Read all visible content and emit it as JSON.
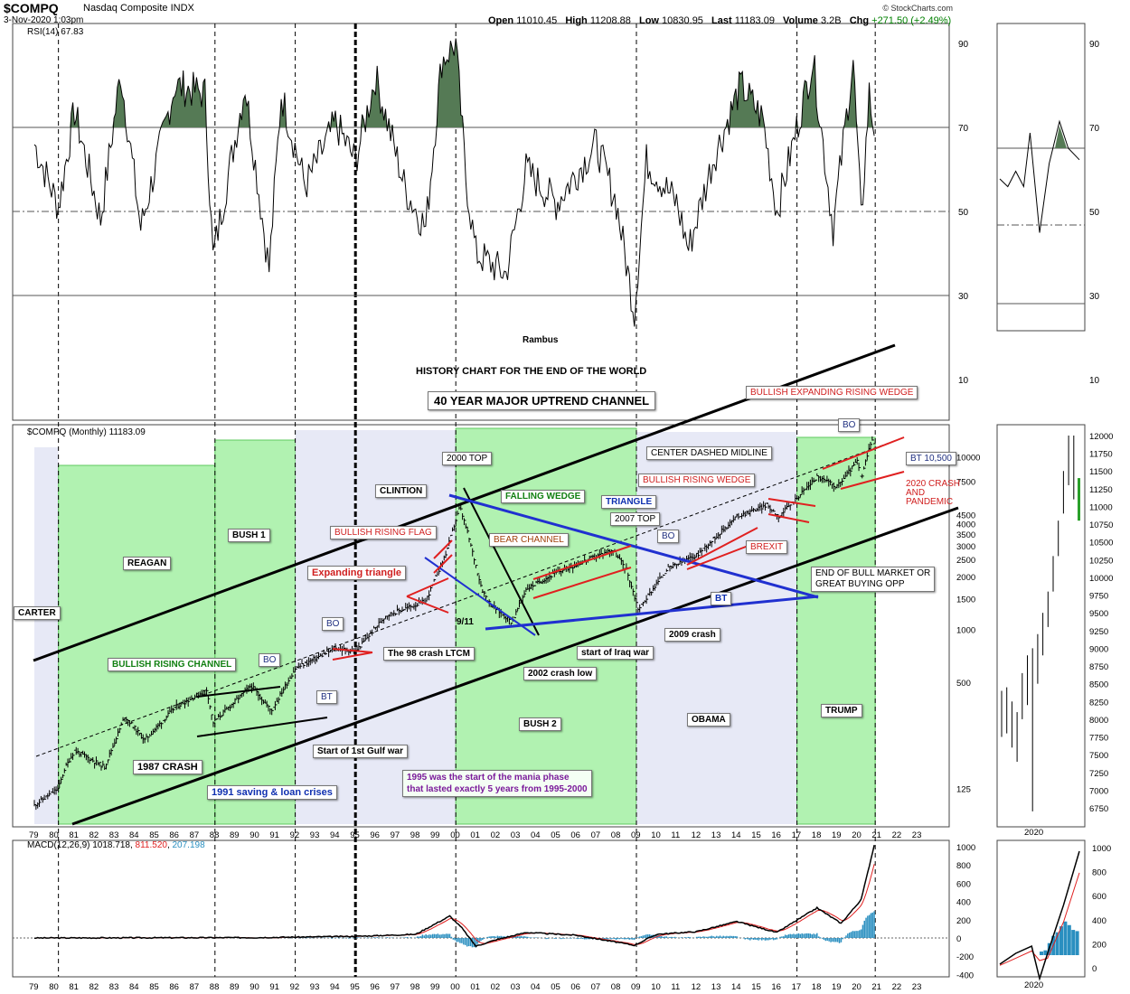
{
  "header": {
    "ticker": "$COMPQ",
    "company": "Nasdaq Composite  INDX",
    "datetime": "3-Nov-2020 1:03pm",
    "open_label": "Open",
    "open": "11010.45",
    "high_label": "High",
    "high": "11208.88",
    "low_label": "Low",
    "low": "10830.95",
    "last_label": "Last",
    "last": "11183.09",
    "volume_label": "Volume",
    "volume": "3.2B",
    "chg_label": "Chg",
    "chg": "+271.50 (+2.49%)",
    "credit": "© StockCharts.com"
  },
  "panels": {
    "rsi_label": "RSI(14) 67.83",
    "price_label": "$COMPQ (Monthly) 11183.09",
    "macd_label": "MACD(12,26,9)",
    "macd_v1": "1018.718",
    "macd_v2": "811.520",
    "macd_v3": "207.198",
    "colors": {
      "rsi_fill": "#557a55",
      "macd_line": "#000000",
      "signal_line": "#e02020",
      "histogram": "#2a8fc0",
      "era_green": "#a3f0a3",
      "era_grey": "#dde0f2"
    }
  },
  "text": {
    "rambus": "Rambus",
    "title": "HISTORY CHART FOR THE END OF THE WORLD",
    "channel": "40 YEAR MAJOR UPTREND CHANNEL"
  },
  "eras": [
    "CARTER",
    "REAGAN",
    "BUSH 1",
    "CLINTION",
    "BUSH 2",
    "OBAMA",
    "TRUMP"
  ],
  "annotations": {
    "bullish_expanding": "BULLISH EXPANDING RISING WEDGE",
    "bo_top": "BO",
    "bt_10500": "BT 10,500",
    "crash2020": [
      "2020 CRASH",
      "AND",
      "PANDEMIC"
    ],
    "center_midline": "CENTER DASHED MIDLINE",
    "top2000": "2000 TOP",
    "falling_wedge": "FALLING WEDGE",
    "triangle": "TRIANGLE",
    "top2007": "2007 TOP",
    "bullish_rising_wedge": "BULLISH RISING WEDGE",
    "bullish_rising_flag": "BULLISH RISING FLAG",
    "bear_channel": "BEAR CHANNEL",
    "bo_2009": "BO",
    "brexit": "BREXIT",
    "expanding_triangle": "Expanding triangle",
    "end_bull": [
      "END OF BULL MARKET OR",
      "GREAT BUYING OPP"
    ],
    "bt_2012": "BT",
    "nine_eleven": "9/11",
    "bo_1995": "BO",
    "crash98": "The 98 crash LTCM",
    "crash2009": "2009 crash",
    "iraq": "start of Iraq war",
    "crash2002": "2002 crash low",
    "bullish_rising_channel": "BULLISH RISING CHANNEL",
    "bo_1991": "BO",
    "bt_1993": "BT",
    "gulf_war": "Start of 1st Gulf war",
    "crash1987": "1987 CRASH",
    "savings_loan": "1991 saving & loan crises",
    "mania": [
      "1995 was the start of the mania phase",
      "that lasted exactly 5 years from 1995-2000"
    ]
  },
  "chart_data": [
    {
      "type": "line",
      "panel": "RSI(14)",
      "series": [
        {
          "name": "RSI(14)",
          "last": 67.83
        }
      ],
      "y_ticks": [
        90,
        70,
        50,
        30,
        10
      ],
      "reference_lines": [
        70,
        50,
        30
      ]
    },
    {
      "type": "candlestick",
      "panel": "$COMPQ (Monthly)",
      "scale": "log",
      "x_ticks": [
        "79",
        "80",
        "81",
        "82",
        "83",
        "84",
        "85",
        "86",
        "87",
        "88",
        "89",
        "90",
        "91",
        "92",
        "93",
        "94",
        "95",
        "96",
        "97",
        "98",
        "99",
        "00",
        "01",
        "02",
        "03",
        "04",
        "05",
        "06",
        "07",
        "08",
        "09",
        "10",
        "11",
        "12",
        "13",
        "14",
        "15",
        "16",
        "17",
        "18",
        "19",
        "20",
        "21",
        "22",
        "23"
      ],
      "y_ticks": [
        125,
        500,
        1000,
        1500,
        2000,
        2500,
        3000,
        3500,
        4000,
        4500,
        5000,
        5500,
        6000,
        6500,
        7000,
        7500,
        8000,
        8500,
        9000,
        9500,
        10000,
        11000,
        12000,
        12500
      ],
      "y_tick_labels": [
        "125",
        "500",
        "1000",
        "1500",
        "2000",
        "2500",
        "3000",
        "3500",
        "4000",
        "4500",
        "",
        "",
        "",
        "",
        "",
        "7500",
        "",
        "",
        "",
        "",
        "10000",
        "",
        "",
        ""
      ],
      "points": [
        {
          "x": 1979.0,
          "y": 100
        },
        {
          "x": 1980.2,
          "y": 125
        },
        {
          "x": 1980.5,
          "y": 160
        },
        {
          "x": 1981.0,
          "y": 205
        },
        {
          "x": 1982.5,
          "y": 165
        },
        {
          "x": 1983.5,
          "y": 320
        },
        {
          "x": 1984.5,
          "y": 235
        },
        {
          "x": 1986.0,
          "y": 360
        },
        {
          "x": 1987.6,
          "y": 455
        },
        {
          "x": 1987.9,
          "y": 295
        },
        {
          "x": 1989.8,
          "y": 480
        },
        {
          "x": 1990.8,
          "y": 345
        },
        {
          "x": 1992.0,
          "y": 600
        },
        {
          "x": 1994.0,
          "y": 780
        },
        {
          "x": 1995.0,
          "y": 750
        },
        {
          "x": 1996.5,
          "y": 1200
        },
        {
          "x": 1998.5,
          "y": 1450
        },
        {
          "x": 1999.5,
          "y": 2700
        },
        {
          "x": 2000.2,
          "y": 5000
        },
        {
          "x": 2000.6,
          "y": 3500
        },
        {
          "x": 2001.3,
          "y": 1700
        },
        {
          "x": 2001.7,
          "y": 1400
        },
        {
          "x": 2002.8,
          "y": 1100
        },
        {
          "x": 2003.5,
          "y": 1700
        },
        {
          "x": 2005.0,
          "y": 2100
        },
        {
          "x": 2007.8,
          "y": 2850
        },
        {
          "x": 2008.5,
          "y": 2200
        },
        {
          "x": 2009.1,
          "y": 1300
        },
        {
          "x": 2010.5,
          "y": 2200
        },
        {
          "x": 2012.0,
          "y": 2650
        },
        {
          "x": 2014.0,
          "y": 4400
        },
        {
          "x": 2015.5,
          "y": 5100
        },
        {
          "x": 2016.1,
          "y": 4400
        },
        {
          "x": 2018.0,
          "y": 7400
        },
        {
          "x": 2019.0,
          "y": 6500
        },
        {
          "x": 2020.0,
          "y": 9100
        },
        {
          "x": 2020.2,
          "y": 7100
        },
        {
          "x": 2020.7,
          "y": 12000
        },
        {
          "x": 2020.85,
          "y": 11183
        }
      ]
    },
    {
      "type": "line",
      "panel": "MACD(12,26,9)",
      "series": [
        {
          "name": "MACD",
          "last": 1018.718
        },
        {
          "name": "Signal",
          "last": 811.52
        },
        {
          "name": "Histogram",
          "last": 207.198
        }
      ],
      "y_ticks": [
        1000,
        800,
        600,
        400,
        200,
        0,
        -200,
        -400
      ]
    },
    {
      "type": "candlestick",
      "panel": "2020 inset",
      "x_ticks": [
        "2020"
      ],
      "y_ticks": [
        6750,
        7000,
        7250,
        7500,
        7750,
        8000,
        8250,
        8500,
        8750,
        9000,
        9250,
        9500,
        9750,
        10000,
        10250,
        10500,
        10750,
        11000,
        11250,
        11500,
        11750,
        12000
      ],
      "rsi_ticks": [
        90,
        70,
        50,
        30,
        10
      ],
      "macd_ticks": [
        1000,
        800,
        600,
        400,
        200,
        0
      ]
    }
  ]
}
